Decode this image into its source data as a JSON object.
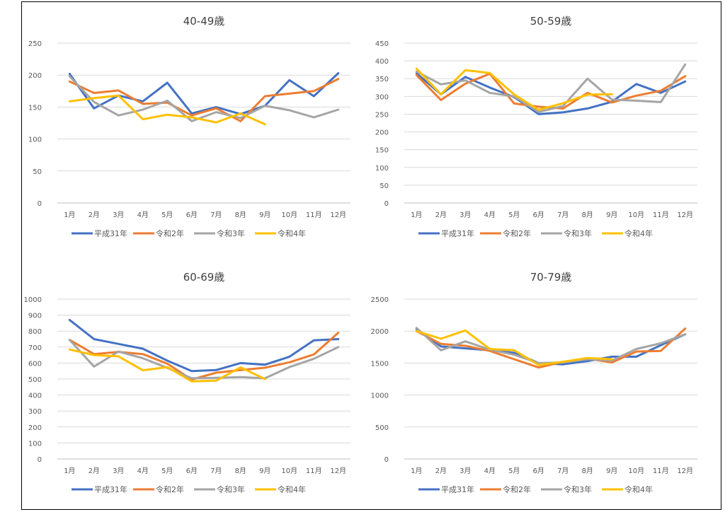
{
  "chart_data": [
    {
      "type": "line",
      "title": "40-49歳",
      "categories": [
        "1月",
        "2月",
        "3月",
        "4月",
        "5月",
        "6月",
        "7月",
        "8月",
        "9月",
        "10月",
        "11月",
        "12月"
      ],
      "ylim": [
        0,
        250
      ],
      "yticks": [
        0,
        50,
        100,
        150,
        200,
        250
      ],
      "grid": true,
      "legend_position": "bottom",
      "series": [
        {
          "name": "平成31年",
          "color": "#4472C4",
          "values": [
            202,
            148,
            168,
            159,
            188,
            140,
            150,
            139,
            152,
            192,
            167,
            203
          ]
        },
        {
          "name": "令和2年",
          "color": "#ED7D31",
          "values": [
            190,
            172,
            176,
            155,
            157,
            137,
            148,
            128,
            167,
            171,
            175,
            194
          ]
        },
        {
          "name": "令和3年",
          "color": "#A5A5A5",
          "values": [
            198,
            158,
            137,
            146,
            160,
            128,
            142,
            133,
            152,
            145,
            134,
            146
          ]
        },
        {
          "name": "令和4年",
          "color": "#FFC000",
          "values": [
            159,
            164,
            168,
            131,
            138,
            134,
            126,
            140,
            123,
            null,
            null,
            null
          ]
        }
      ]
    },
    {
      "type": "line",
      "title": "50-59歳",
      "categories": [
        "1月",
        "2月",
        "3月",
        "4月",
        "5月",
        "6月",
        "7月",
        "8月",
        "9月",
        "10月",
        "11月",
        "12月"
      ],
      "ylim": [
        0,
        450
      ],
      "yticks": [
        0,
        50,
        100,
        150,
        200,
        250,
        300,
        350,
        400,
        450
      ],
      "grid": true,
      "legend_position": "bottom",
      "series": [
        {
          "name": "平成31年",
          "color": "#4472C4",
          "values": [
            365,
            306,
            355,
            325,
            298,
            250,
            255,
            266,
            285,
            335,
            310,
            342
          ]
        },
        {
          "name": "令和2年",
          "color": "#ED7D31",
          "values": [
            360,
            290,
            336,
            364,
            280,
            271,
            266,
            310,
            283,
            302,
            316,
            357
          ]
        },
        {
          "name": "令和3年",
          "color": "#A5A5A5",
          "values": [
            370,
            334,
            345,
            310,
            300,
            256,
            273,
            350,
            291,
            288,
            284,
            390
          ]
        },
        {
          "name": "令和4年",
          "color": "#FFC000",
          "values": [
            378,
            306,
            374,
            366,
            305,
            262,
            281,
            305,
            306,
            null,
            null,
            null
          ]
        }
      ]
    },
    {
      "type": "line",
      "title": "60-69歳",
      "categories": [
        "1月",
        "2月",
        "3月",
        "4月",
        "5月",
        "6月",
        "7月",
        "8月",
        "9月",
        "10月",
        "11月",
        "12月"
      ],
      "ylim": [
        0,
        1000
      ],
      "yticks": [
        0,
        100,
        200,
        300,
        400,
        500,
        600,
        700,
        800,
        900,
        1000
      ],
      "grid": true,
      "legend_position": "bottom",
      "series": [
        {
          "name": "平成31年",
          "color": "#4472C4",
          "values": [
            870,
            750,
            720,
            690,
            615,
            550,
            556,
            600,
            590,
            640,
            742,
            750
          ]
        },
        {
          "name": "令和2年",
          "color": "#ED7D31",
          "values": [
            745,
            656,
            670,
            656,
            596,
            497,
            540,
            556,
            571,
            605,
            654,
            790
          ]
        },
        {
          "name": "令和3年",
          "color": "#A5A5A5",
          "values": [
            745,
            578,
            672,
            630,
            570,
            505,
            508,
            512,
            505,
            575,
            627,
            700
          ]
        },
        {
          "name": "令和4年",
          "color": "#FFC000",
          "values": [
            685,
            650,
            642,
            555,
            575,
            486,
            490,
            573,
            500,
            null,
            null,
            null
          ]
        }
      ]
    },
    {
      "type": "line",
      "title": "70-79歳",
      "categories": [
        "1月",
        "2月",
        "3月",
        "4月",
        "5月",
        "6月",
        "7月",
        "8月",
        "9月",
        "10月",
        "11月",
        "12月"
      ],
      "ylim": [
        0,
        2500
      ],
      "yticks": [
        0,
        500,
        1000,
        1500,
        2000,
        2500
      ],
      "grid": true,
      "legend_position": "bottom",
      "series": [
        {
          "name": "平成31年",
          "color": "#4472C4",
          "values": [
            2030,
            1760,
            1730,
            1700,
            1660,
            1500,
            1480,
            1530,
            1600,
            1600,
            1780,
            1950
          ]
        },
        {
          "name": "令和2年",
          "color": "#ED7D31",
          "values": [
            2000,
            1800,
            1770,
            1690,
            1560,
            1430,
            1520,
            1570,
            1510,
            1680,
            1690,
            2040
          ]
        },
        {
          "name": "令和3年",
          "color": "#A5A5A5",
          "values": [
            2050,
            1700,
            1840,
            1710,
            1630,
            1500,
            1510,
            1560,
            1540,
            1720,
            1810,
            1950
          ]
        },
        {
          "name": "令和4年",
          "color": "#FFC000",
          "values": [
            2000,
            1880,
            2010,
            1720,
            1700,
            1470,
            1520,
            1580,
            1560,
            null,
            null,
            null
          ]
        }
      ]
    }
  ]
}
